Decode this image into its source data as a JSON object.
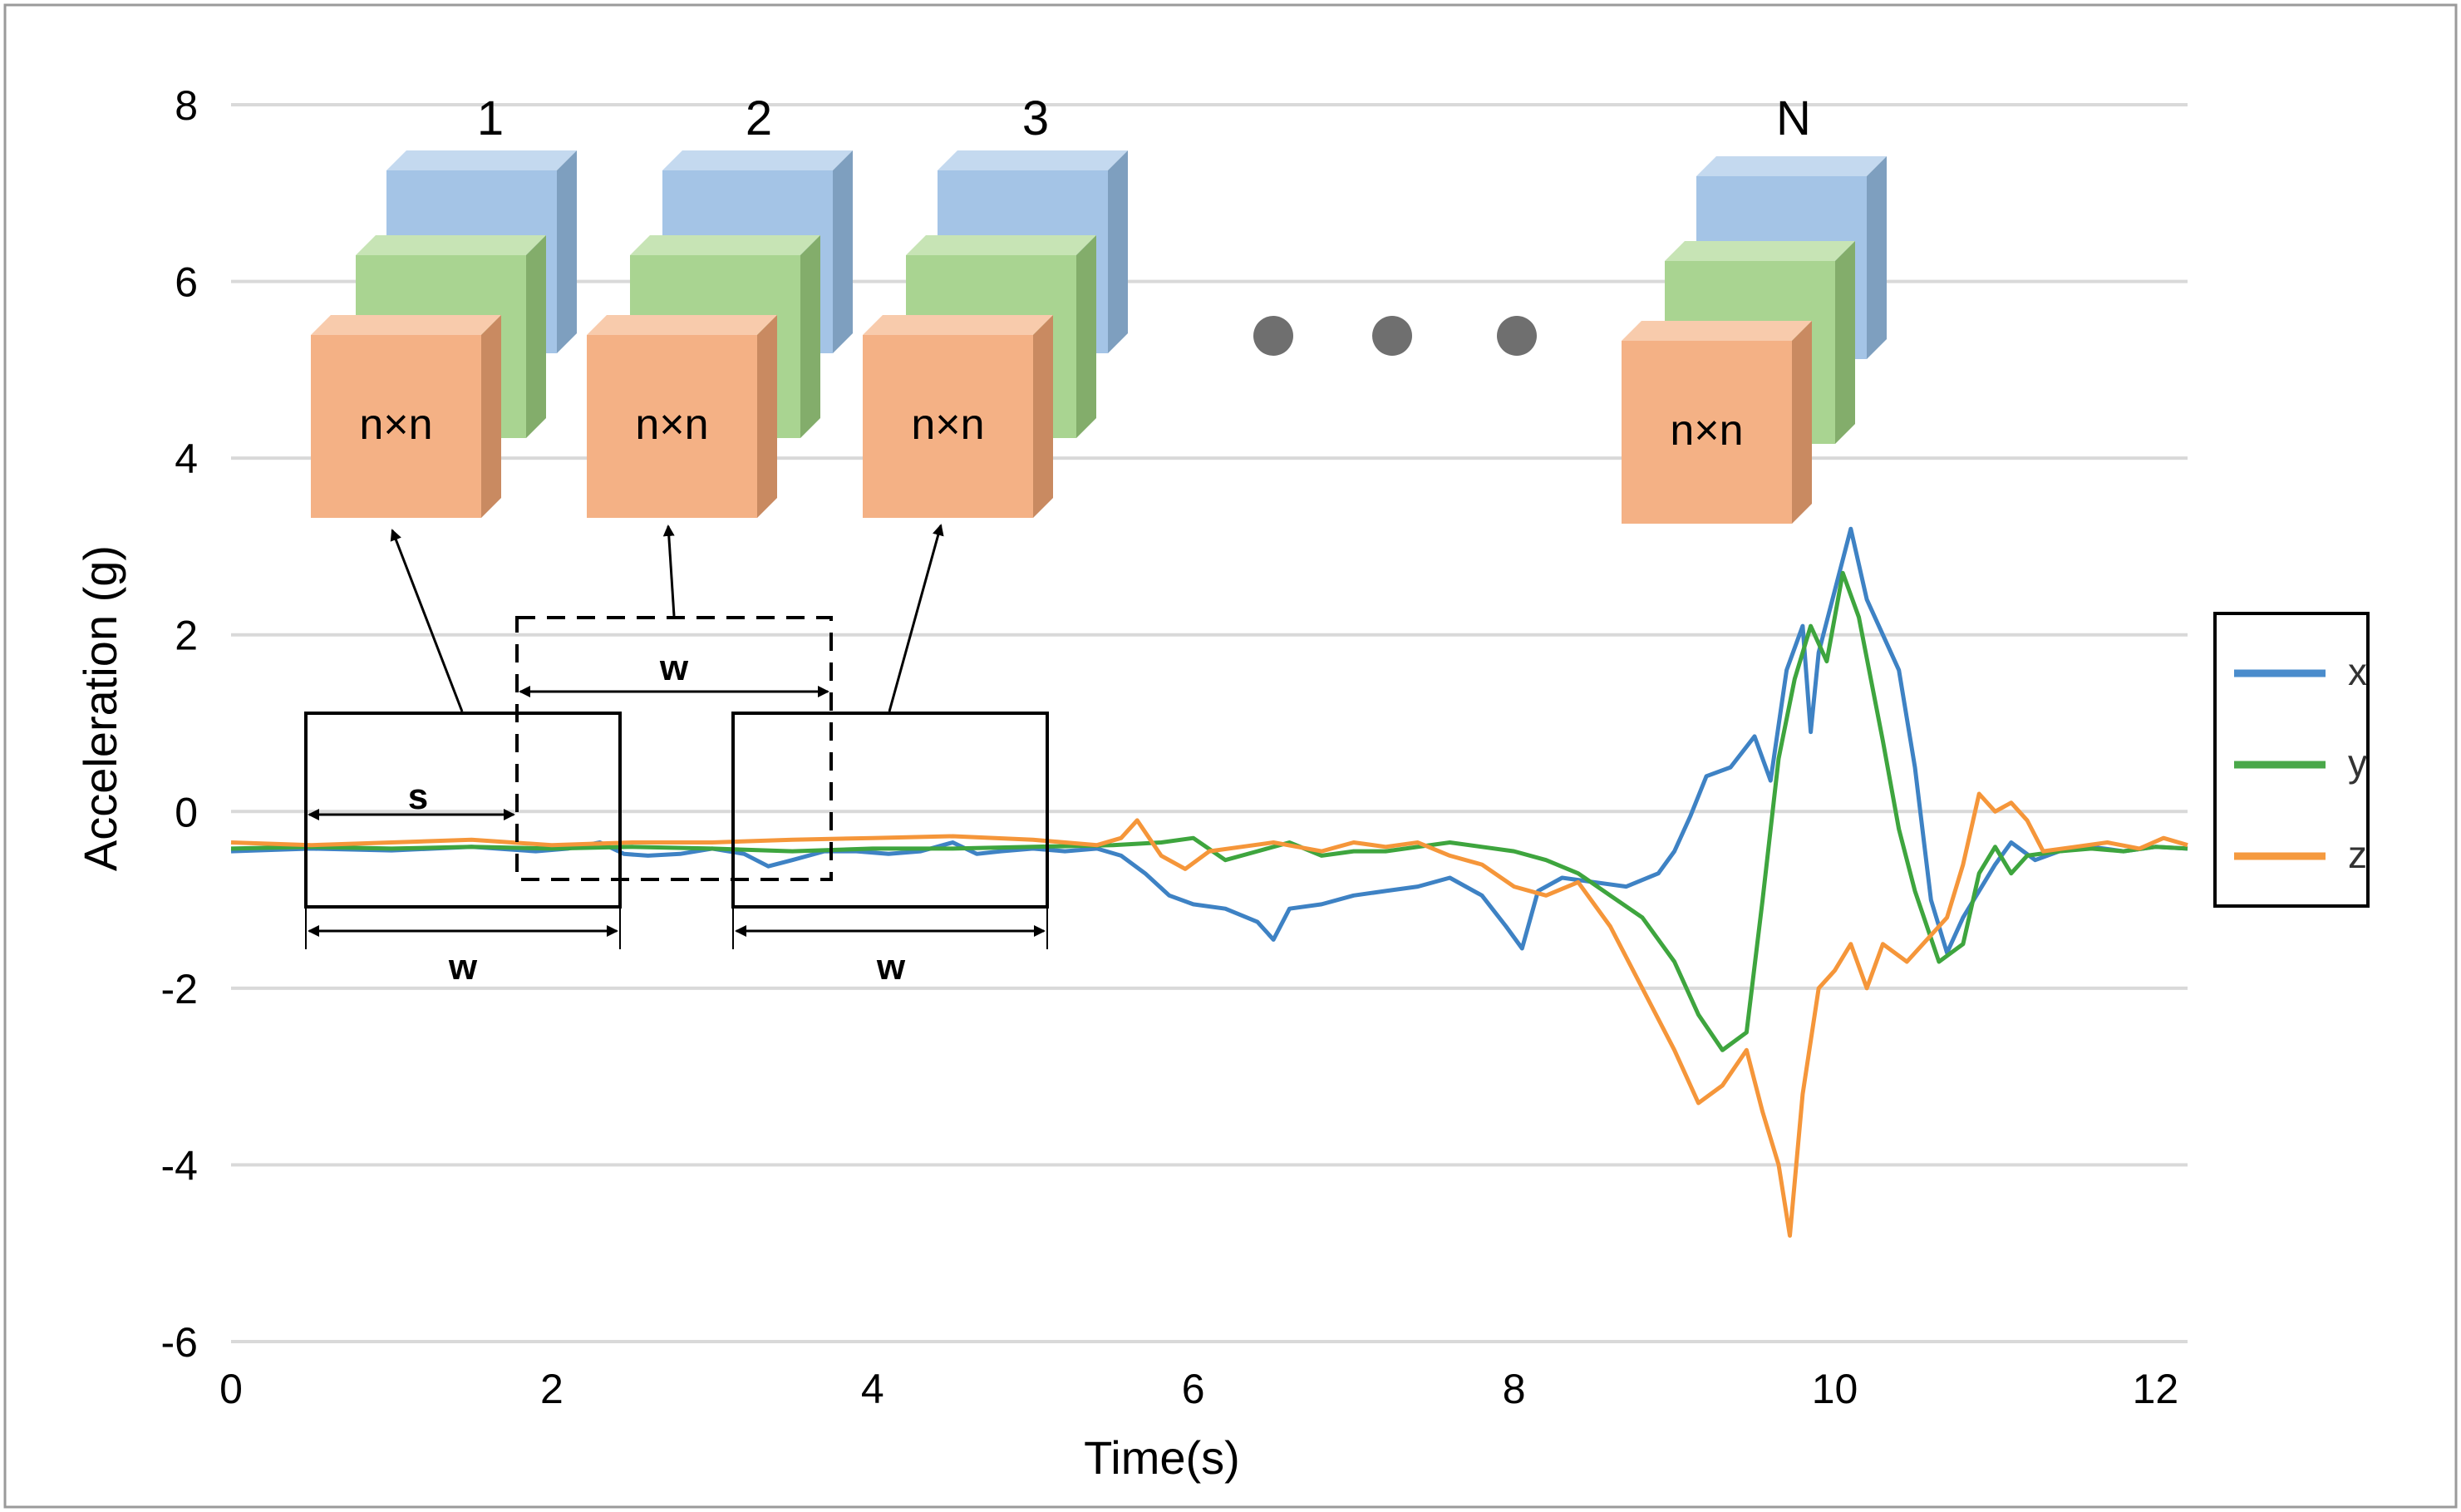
{
  "chart_data": {
    "type": "line",
    "title": "",
    "xlabel": "Time(s)",
    "ylabel": "Acceleration (g)",
    "xlim": [
      0,
      12.2
    ],
    "ylim": [
      -6,
      8
    ],
    "grid": true,
    "x_ticks": [
      "0",
      "2",
      "4",
      "6",
      "8",
      "10",
      "12"
    ],
    "y_ticks": [
      "8",
      "6",
      "4",
      "2",
      "0",
      "-2",
      "-4",
      "-6"
    ],
    "legend": {
      "placement": "right",
      "entries": [
        {
          "name": "x",
          "color": "#4a8ccc"
        },
        {
          "name": "y",
          "color": "#4aa84a"
        },
        {
          "name": "z",
          "color": "#f59a3f"
        }
      ]
    },
    "series": [
      {
        "name": "x",
        "color": "#3e82c4",
        "points": [
          [
            0,
            -0.45
          ],
          [
            0.5,
            -0.42
          ],
          [
            1,
            -0.44
          ],
          [
            1.5,
            -0.4
          ],
          [
            1.9,
            -0.45
          ],
          [
            2.1,
            -0.42
          ],
          [
            2.3,
            -0.35
          ],
          [
            2.45,
            -0.48
          ],
          [
            2.6,
            -0.5
          ],
          [
            2.8,
            -0.48
          ],
          [
            3.0,
            -0.42
          ],
          [
            3.2,
            -0.48
          ],
          [
            3.35,
            -0.62
          ],
          [
            3.5,
            -0.55
          ],
          [
            3.7,
            -0.45
          ],
          [
            3.9,
            -0.45
          ],
          [
            4.1,
            -0.48
          ],
          [
            4.3,
            -0.45
          ],
          [
            4.5,
            -0.35
          ],
          [
            4.65,
            -0.48
          ],
          [
            4.8,
            -0.45
          ],
          [
            5.0,
            -0.42
          ],
          [
            5.2,
            -0.45
          ],
          [
            5.4,
            -0.42
          ],
          [
            5.55,
            -0.5
          ],
          [
            5.7,
            -0.7
          ],
          [
            5.85,
            -0.95
          ],
          [
            6.0,
            -1.05
          ],
          [
            6.2,
            -1.1
          ],
          [
            6.4,
            -1.25
          ],
          [
            6.5,
            -1.45
          ],
          [
            6.6,
            -1.1
          ],
          [
            6.8,
            -1.05
          ],
          [
            7.0,
            -0.95
          ],
          [
            7.2,
            -0.9
          ],
          [
            7.4,
            -0.85
          ],
          [
            7.6,
            -0.75
          ],
          [
            7.8,
            -0.95
          ],
          [
            7.95,
            -1.3
          ],
          [
            8.05,
            -1.55
          ],
          [
            8.15,
            -0.9
          ],
          [
            8.3,
            -0.75
          ],
          [
            8.5,
            -0.8
          ],
          [
            8.7,
            -0.85
          ],
          [
            8.9,
            -0.7
          ],
          [
            9.0,
            -0.45
          ],
          [
            9.1,
            -0.05
          ],
          [
            9.2,
            0.4
          ],
          [
            9.35,
            0.5
          ],
          [
            9.5,
            0.85
          ],
          [
            9.6,
            0.35
          ],
          [
            9.7,
            1.6
          ],
          [
            9.8,
            2.1
          ],
          [
            9.85,
            0.9
          ],
          [
            9.9,
            1.8
          ],
          [
            10.0,
            2.5
          ],
          [
            10.1,
            3.2
          ],
          [
            10.2,
            2.4
          ],
          [
            10.3,
            2.0
          ],
          [
            10.4,
            1.6
          ],
          [
            10.5,
            0.5
          ],
          [
            10.6,
            -1.0
          ],
          [
            10.7,
            -1.6
          ],
          [
            10.8,
            -1.2
          ],
          [
            10.9,
            -0.9
          ],
          [
            11.0,
            -0.6
          ],
          [
            11.1,
            -0.35
          ],
          [
            11.25,
            -0.55
          ],
          [
            11.4,
            -0.45
          ],
          [
            11.6,
            -0.4
          ],
          [
            11.8,
            -0.45
          ],
          [
            12.0,
            -0.4
          ],
          [
            12.2,
            -0.42
          ]
        ]
      },
      {
        "name": "y",
        "color": "#3ea53e",
        "points": [
          [
            0,
            -0.42
          ],
          [
            0.5,
            -0.4
          ],
          [
            1,
            -0.42
          ],
          [
            1.5,
            -0.4
          ],
          [
            2.0,
            -0.42
          ],
          [
            2.5,
            -0.4
          ],
          [
            3.0,
            -0.42
          ],
          [
            3.5,
            -0.45
          ],
          [
            4.0,
            -0.42
          ],
          [
            4.5,
            -0.42
          ],
          [
            5.0,
            -0.4
          ],
          [
            5.5,
            -0.38
          ],
          [
            5.8,
            -0.35
          ],
          [
            6.0,
            -0.3
          ],
          [
            6.2,
            -0.55
          ],
          [
            6.4,
            -0.45
          ],
          [
            6.6,
            -0.35
          ],
          [
            6.8,
            -0.5
          ],
          [
            7.0,
            -0.45
          ],
          [
            7.2,
            -0.45
          ],
          [
            7.4,
            -0.4
          ],
          [
            7.6,
            -0.35
          ],
          [
            7.8,
            -0.4
          ],
          [
            8.0,
            -0.45
          ],
          [
            8.2,
            -0.55
          ],
          [
            8.4,
            -0.7
          ],
          [
            8.6,
            -0.95
          ],
          [
            8.8,
            -1.2
          ],
          [
            9.0,
            -1.7
          ],
          [
            9.15,
            -2.3
          ],
          [
            9.3,
            -2.7
          ],
          [
            9.45,
            -2.5
          ],
          [
            9.55,
            -1.0
          ],
          [
            9.65,
            0.6
          ],
          [
            9.75,
            1.5
          ],
          [
            9.85,
            2.1
          ],
          [
            9.95,
            1.7
          ],
          [
            10.05,
            2.7
          ],
          [
            10.15,
            2.2
          ],
          [
            10.3,
            0.8
          ],
          [
            10.4,
            -0.2
          ],
          [
            10.5,
            -0.9
          ],
          [
            10.65,
            -1.7
          ],
          [
            10.8,
            -1.5
          ],
          [
            10.9,
            -0.7
          ],
          [
            11.0,
            -0.4
          ],
          [
            11.1,
            -0.7
          ],
          [
            11.2,
            -0.5
          ],
          [
            11.4,
            -0.45
          ],
          [
            11.6,
            -0.42
          ],
          [
            11.8,
            -0.45
          ],
          [
            12.0,
            -0.4
          ],
          [
            12.2,
            -0.42
          ]
        ]
      },
      {
        "name": "z",
        "color": "#f5963a",
        "points": [
          [
            0,
            -0.35
          ],
          [
            0.5,
            -0.38
          ],
          [
            1,
            -0.35
          ],
          [
            1.5,
            -0.32
          ],
          [
            2.0,
            -0.38
          ],
          [
            2.5,
            -0.35
          ],
          [
            3.0,
            -0.35
          ],
          [
            3.5,
            -0.32
          ],
          [
            4.0,
            -0.3
          ],
          [
            4.5,
            -0.28
          ],
          [
            5.0,
            -0.32
          ],
          [
            5.4,
            -0.38
          ],
          [
            5.55,
            -0.3
          ],
          [
            5.65,
            -0.1
          ],
          [
            5.8,
            -0.5
          ],
          [
            5.95,
            -0.65
          ],
          [
            6.1,
            -0.45
          ],
          [
            6.3,
            -0.4
          ],
          [
            6.5,
            -0.35
          ],
          [
            6.8,
            -0.45
          ],
          [
            7.0,
            -0.35
          ],
          [
            7.2,
            -0.4
          ],
          [
            7.4,
            -0.35
          ],
          [
            7.6,
            -0.5
          ],
          [
            7.8,
            -0.6
          ],
          [
            8.0,
            -0.85
          ],
          [
            8.2,
            -0.95
          ],
          [
            8.4,
            -0.8
          ],
          [
            8.6,
            -1.3
          ],
          [
            8.8,
            -2.0
          ],
          [
            9.0,
            -2.7
          ],
          [
            9.15,
            -3.3
          ],
          [
            9.3,
            -3.1
          ],
          [
            9.45,
            -2.7
          ],
          [
            9.55,
            -3.4
          ],
          [
            9.65,
            -4.0
          ],
          [
            9.72,
            -4.8
          ],
          [
            9.8,
            -3.2
          ],
          [
            9.9,
            -2.0
          ],
          [
            10.0,
            -1.8
          ],
          [
            10.1,
            -1.5
          ],
          [
            10.2,
            -2.0
          ],
          [
            10.3,
            -1.5
          ],
          [
            10.45,
            -1.7
          ],
          [
            10.6,
            -1.4
          ],
          [
            10.7,
            -1.2
          ],
          [
            10.8,
            -0.6
          ],
          [
            10.9,
            0.2
          ],
          [
            11.0,
            0.0
          ],
          [
            11.1,
            0.1
          ],
          [
            11.2,
            -0.1
          ],
          [
            11.3,
            -0.45
          ],
          [
            11.5,
            -0.4
          ],
          [
            11.7,
            -0.35
          ],
          [
            11.9,
            -0.42
          ],
          [
            12.05,
            -0.3
          ],
          [
            12.2,
            -0.38
          ]
        ]
      }
    ],
    "annotations": {
      "cube_indices": [
        "1",
        "2",
        "3",
        "N"
      ],
      "cube_face_label": "n×n",
      "window_label": "w",
      "stride_label": "s",
      "ellipsis_dots": 3
    }
  }
}
